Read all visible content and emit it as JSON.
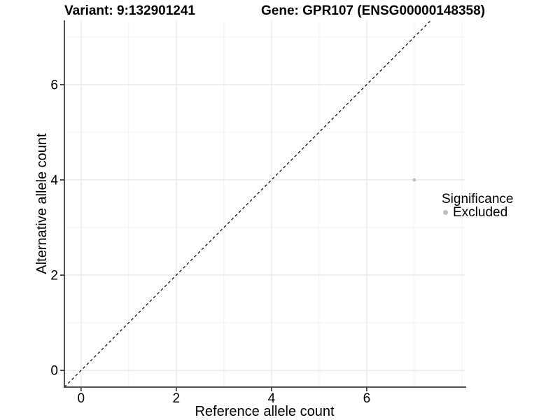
{
  "titles": {
    "variant": "Variant: 9:132901241",
    "gene": "Gene: GPR107 (ENSG00000148358)"
  },
  "chart_data": {
    "type": "scatter",
    "title_left": "Variant: 9:132901241",
    "title_right": "Gene: GPR107 (ENSG00000148358)",
    "xlabel": "Reference allele count",
    "ylabel": "Alternative allele count",
    "xlim": [
      -0.35,
      8.06
    ],
    "ylim": [
      -0.35,
      7.35
    ],
    "x_ticks": [
      0,
      2,
      4,
      6
    ],
    "y_ticks": [
      0,
      2,
      4,
      6
    ],
    "x_grid": [
      0,
      1,
      2,
      3,
      4,
      5,
      6,
      7,
      8
    ],
    "y_grid": [
      0,
      1,
      2,
      3,
      4,
      5,
      6,
      7
    ],
    "grid": "on",
    "identity_line": {
      "equation": "y = x",
      "style": "dashed",
      "color": "#000000"
    },
    "series": [
      {
        "name": "Excluded",
        "color": "#bebebe",
        "points": [
          {
            "x": 7,
            "y": 4
          }
        ]
      }
    ],
    "legend": {
      "title": "Significance",
      "position": "right",
      "items": [
        {
          "label": "Excluded",
          "color": "#bebebe"
        }
      ]
    }
  },
  "colors": {
    "grid_major": "#e8e8e8",
    "grid_minor": "#f2f2f2",
    "axis_line": "#3c3c3c",
    "text": "#000000"
  }
}
